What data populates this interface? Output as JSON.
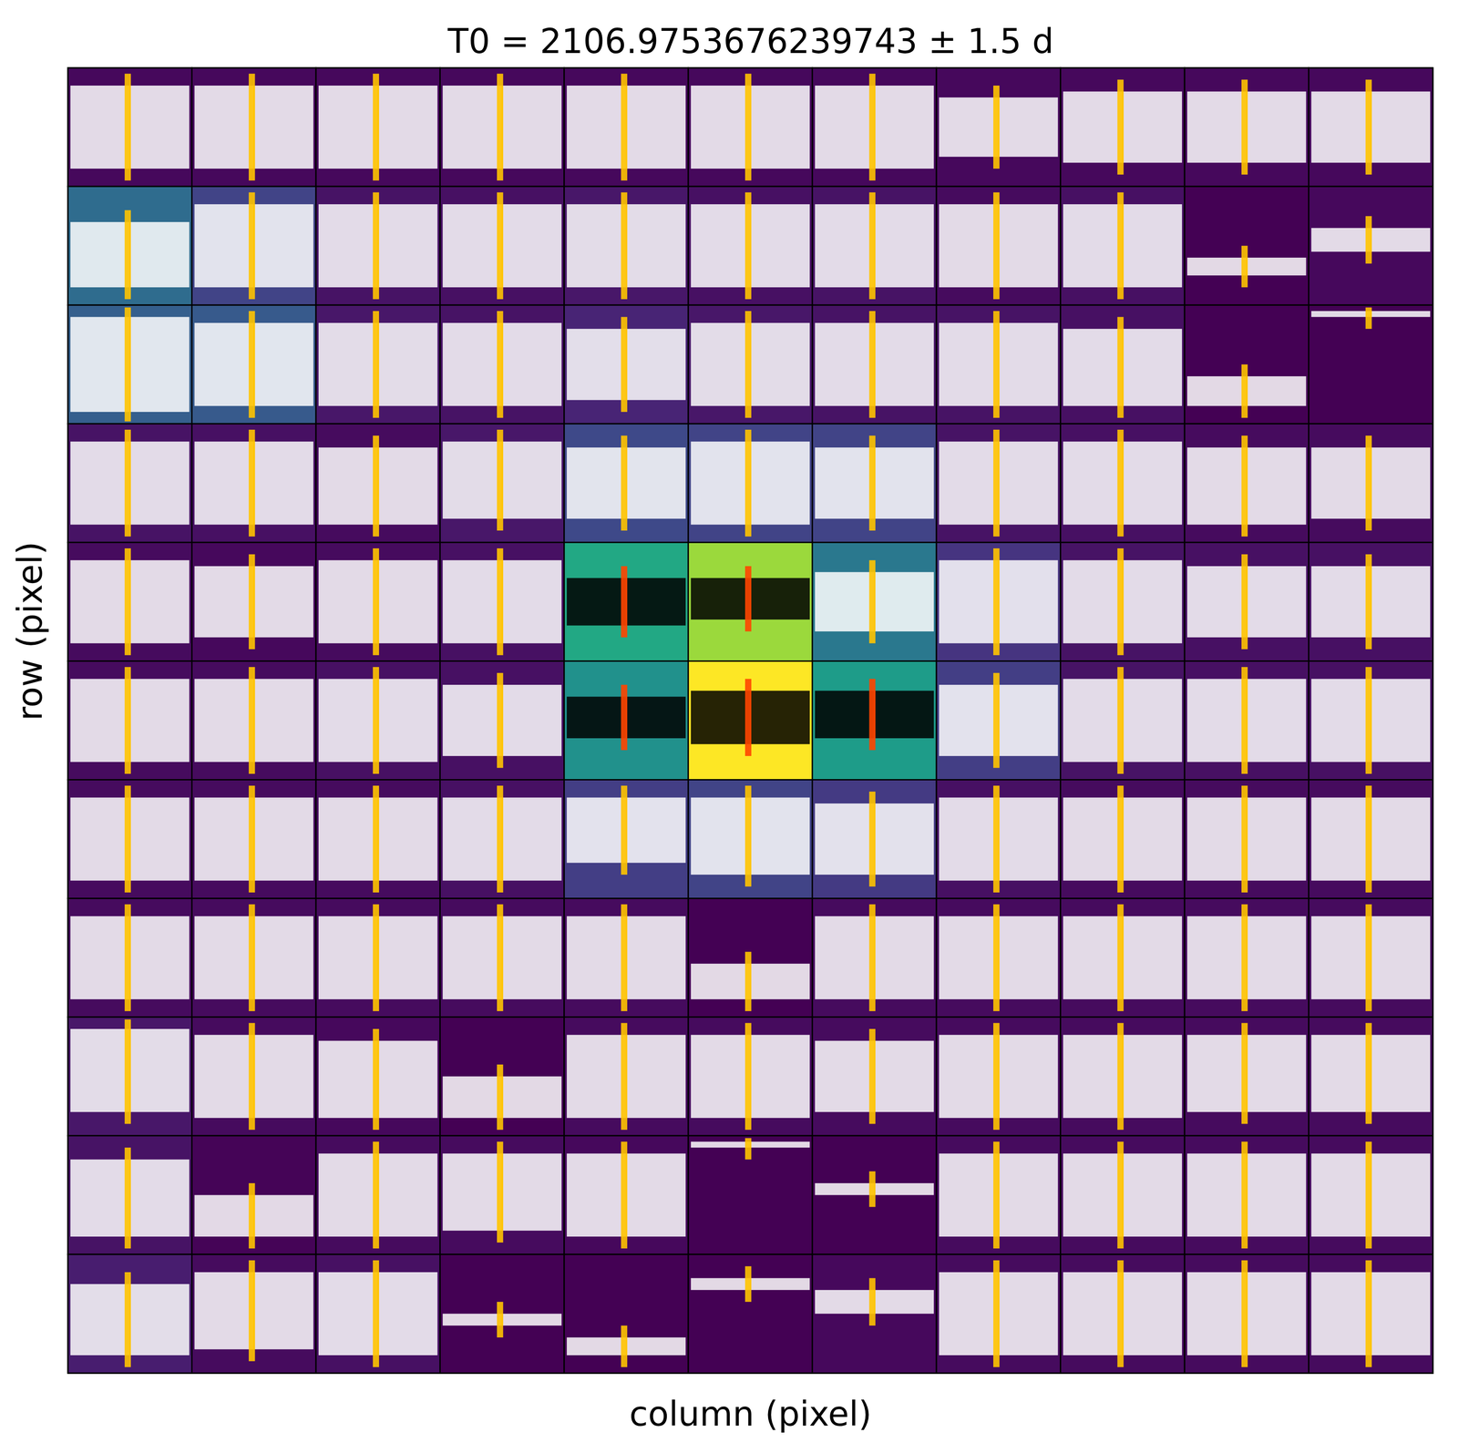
{
  "chart_data": {
    "type": "pixel_grid",
    "title": "T0 = 2106.9753676239743 ± 1.5 d",
    "x_label": "column (pixel)",
    "y_label": "row (pixel)",
    "tick_labels": false,
    "color_range": [
      0,
      1
    ],
    "cells": [
      [
        0.02,
        0.02,
        0.02,
        0.02,
        0.02,
        0.02,
        0.02,
        0.02,
        0.02,
        0.02,
        0.02
      ],
      [
        0.35,
        0.2,
        0.05,
        0.04,
        0.06,
        0.04,
        0.05,
        0.03,
        0.04,
        0.0,
        0.02
      ],
      [
        0.3,
        0.28,
        0.06,
        0.05,
        0.1,
        0.06,
        0.05,
        0.05,
        0.04,
        0.0,
        0.0
      ],
      [
        0.05,
        0.04,
        0.03,
        0.06,
        0.22,
        0.2,
        0.2,
        0.05,
        0.04,
        0.03,
        0.03
      ],
      [
        0.03,
        0.02,
        0.03,
        0.04,
        0.6,
        0.85,
        0.4,
        0.15,
        0.05,
        0.04,
        0.04
      ],
      [
        0.03,
        0.03,
        0.04,
        0.04,
        0.5,
        1.0,
        0.55,
        0.18,
        0.05,
        0.04,
        0.04
      ],
      [
        0.03,
        0.03,
        0.03,
        0.04,
        0.18,
        0.2,
        0.17,
        0.04,
        0.03,
        0.03,
        0.03
      ],
      [
        0.03,
        0.03,
        0.03,
        0.03,
        0.03,
        0.0,
        0.03,
        0.03,
        0.03,
        0.03,
        0.03
      ],
      [
        0.06,
        0.03,
        0.02,
        0.0,
        0.03,
        0.03,
        0.03,
        0.03,
        0.03,
        0.03,
        0.03
      ],
      [
        0.05,
        0.01,
        0.03,
        0.03,
        0.02,
        0.0,
        0.0,
        0.03,
        0.03,
        0.03,
        0.03
      ],
      [
        0.08,
        0.03,
        0.04,
        0.0,
        0.0,
        0.0,
        0.02,
        0.03,
        0.03,
        0.03,
        0.03
      ]
    ],
    "aperture": [
      [
        4,
        4
      ],
      [
        4,
        5
      ],
      [
        5,
        4
      ],
      [
        5,
        5
      ],
      [
        5,
        6
      ]
    ],
    "bands": [
      [
        [
          0.15,
          0.85
        ],
        [
          0.15,
          0.85
        ],
        [
          0.15,
          0.85
        ],
        [
          0.15,
          0.85
        ],
        [
          0.15,
          0.85
        ],
        [
          0.15,
          0.85
        ],
        [
          0.15,
          0.85
        ],
        [
          0.25,
          0.75
        ],
        [
          0.2,
          0.8
        ],
        [
          0.2,
          0.8
        ],
        [
          0.2,
          0.8
        ]
      ],
      [
        [
          0.3,
          0.85
        ],
        [
          0.15,
          0.85
        ],
        [
          0.15,
          0.85
        ],
        [
          0.15,
          0.85
        ],
        [
          0.15,
          0.85
        ],
        [
          0.15,
          0.85
        ],
        [
          0.15,
          0.85
        ],
        [
          0.15,
          0.85
        ],
        [
          0.15,
          0.85
        ],
        [
          0.6,
          0.75
        ],
        [
          0.35,
          0.55
        ]
      ],
      [
        [
          0.1,
          0.9
        ],
        [
          0.15,
          0.85
        ],
        [
          0.15,
          0.85
        ],
        [
          0.15,
          0.85
        ],
        [
          0.2,
          0.8
        ],
        [
          0.15,
          0.85
        ],
        [
          0.15,
          0.85
        ],
        [
          0.15,
          0.85
        ],
        [
          0.2,
          0.85
        ],
        [
          0.6,
          0.85
        ],
        [
          0.05,
          0.1
        ]
      ],
      [
        [
          0.15,
          0.85
        ],
        [
          0.15,
          0.85
        ],
        [
          0.2,
          0.85
        ],
        [
          0.15,
          0.8
        ],
        [
          0.2,
          0.8
        ],
        [
          0.15,
          0.85
        ],
        [
          0.2,
          0.8
        ],
        [
          0.15,
          0.85
        ],
        [
          0.15,
          0.85
        ],
        [
          0.2,
          0.85
        ],
        [
          0.2,
          0.8
        ]
      ],
      [
        [
          0.15,
          0.85
        ],
        [
          0.2,
          0.8
        ],
        [
          0.15,
          0.85
        ],
        [
          0.15,
          0.85
        ],
        [
          0.3,
          0.7
        ],
        [
          0.3,
          0.65
        ],
        [
          0.25,
          0.75
        ],
        [
          0.15,
          0.85
        ],
        [
          0.15,
          0.85
        ],
        [
          0.2,
          0.8
        ],
        [
          0.2,
          0.8
        ]
      ],
      [
        [
          0.15,
          0.85
        ],
        [
          0.15,
          0.85
        ],
        [
          0.15,
          0.85
        ],
        [
          0.2,
          0.8
        ],
        [
          0.3,
          0.65
        ],
        [
          0.25,
          0.7
        ],
        [
          0.25,
          0.65
        ],
        [
          0.2,
          0.8
        ],
        [
          0.15,
          0.85
        ],
        [
          0.15,
          0.85
        ],
        [
          0.15,
          0.85
        ]
      ],
      [
        [
          0.15,
          0.85
        ],
        [
          0.15,
          0.85
        ],
        [
          0.15,
          0.85
        ],
        [
          0.15,
          0.85
        ],
        [
          0.15,
          0.7
        ],
        [
          0.15,
          0.8
        ],
        [
          0.2,
          0.8
        ],
        [
          0.15,
          0.85
        ],
        [
          0.15,
          0.85
        ],
        [
          0.15,
          0.85
        ],
        [
          0.15,
          0.85
        ]
      ],
      [
        [
          0.15,
          0.85
        ],
        [
          0.15,
          0.85
        ],
        [
          0.15,
          0.85
        ],
        [
          0.15,
          0.85
        ],
        [
          0.15,
          0.85
        ],
        [
          0.55,
          0.85
        ],
        [
          0.15,
          0.85
        ],
        [
          0.15,
          0.85
        ],
        [
          0.15,
          0.85
        ],
        [
          0.15,
          0.85
        ],
        [
          0.15,
          0.85
        ]
      ],
      [
        [
          0.1,
          0.8
        ],
        [
          0.15,
          0.85
        ],
        [
          0.2,
          0.85
        ],
        [
          0.5,
          0.85
        ],
        [
          0.15,
          0.85
        ],
        [
          0.15,
          0.85
        ],
        [
          0.2,
          0.8
        ],
        [
          0.15,
          0.85
        ],
        [
          0.15,
          0.85
        ],
        [
          0.15,
          0.8
        ],
        [
          0.15,
          0.8
        ]
      ],
      [
        [
          0.2,
          0.85
        ],
        [
          0.5,
          0.85
        ],
        [
          0.15,
          0.85
        ],
        [
          0.15,
          0.8
        ],
        [
          0.15,
          0.85
        ],
        [
          0.05,
          0.1
        ],
        [
          0.4,
          0.5
        ],
        [
          0.15,
          0.85
        ],
        [
          0.15,
          0.85
        ],
        [
          0.15,
          0.85
        ],
        [
          0.15,
          0.85
        ]
      ],
      [
        [
          0.25,
          0.85
        ],
        [
          0.15,
          0.8
        ],
        [
          0.15,
          0.85
        ],
        [
          0.5,
          0.6
        ],
        [
          0.7,
          0.85
        ],
        [
          0.2,
          0.3
        ],
        [
          0.3,
          0.5
        ],
        [
          0.15,
          0.85
        ],
        [
          0.15,
          0.85
        ],
        [
          0.15,
          0.85
        ],
        [
          0.15,
          0.85
        ]
      ]
    ],
    "t0": 2106.9753676239743,
    "xlim": [
      2105.4753676239743,
      2108.4753676239743
    ],
    "transit": [
      2106.85,
      2107.0
    ]
  }
}
